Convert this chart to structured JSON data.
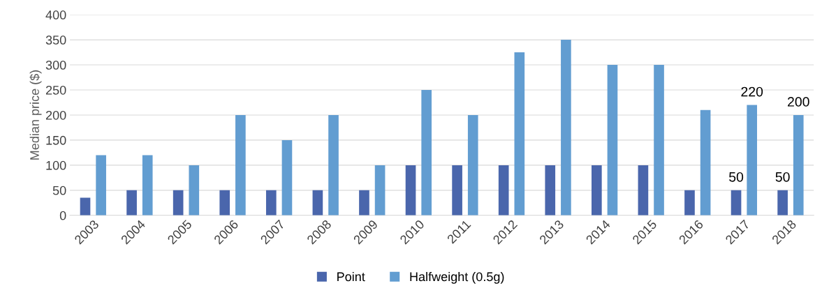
{
  "chart_data": {
    "type": "bar",
    "ylabel": "Median price ($)",
    "categories": [
      "2003",
      "2004",
      "2005",
      "2006",
      "2007",
      "2008",
      "2009",
      "2010",
      "2011",
      "2012",
      "2013",
      "2014",
      "2015",
      "2016",
      "2017",
      "2018"
    ],
    "series": [
      {
        "name": "Point",
        "color": "#4a66ac",
        "values": [
          35,
          50,
          50,
          50,
          50,
          50,
          50,
          100,
          100,
          100,
          100,
          100,
          100,
          50,
          50,
          50
        ],
        "value_labels": [
          null,
          null,
          null,
          null,
          null,
          null,
          null,
          null,
          null,
          null,
          null,
          null,
          null,
          null,
          "50",
          "50"
        ]
      },
      {
        "name": "Halfweight (0.5g)",
        "color": "#629dd1",
        "values": [
          120,
          120,
          100,
          200,
          150,
          200,
          100,
          250,
          200,
          325,
          350,
          300,
          300,
          210,
          220,
          200
        ],
        "value_labels": [
          null,
          null,
          null,
          null,
          null,
          null,
          null,
          null,
          null,
          null,
          null,
          null,
          null,
          null,
          "220",
          "200"
        ]
      }
    ],
    "ylim": [
      0,
      400
    ],
    "yticks": [
      0,
      50,
      100,
      150,
      200,
      250,
      300,
      350,
      400
    ],
    "grid": "y",
    "legend": "bottom"
  }
}
